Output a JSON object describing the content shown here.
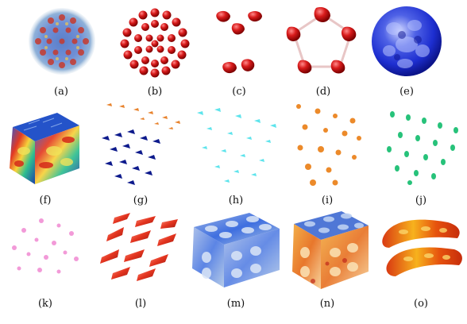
{
  "panels": [
    {
      "label": "(a)"
    },
    {
      "label": "(b)"
    },
    {
      "label": "(c)"
    },
    {
      "label": "(d)"
    },
    {
      "label": "(e)"
    },
    {
      "label": "(f)"
    },
    {
      "label": "(g)"
    },
    {
      "label": "(h)"
    },
    {
      "label": "(i)"
    },
    {
      "label": "(j)"
    },
    {
      "label": "(k)"
    },
    {
      "label": "(l)"
    },
    {
      "label": "(m)"
    },
    {
      "label": "(n)"
    },
    {
      "label": "(o)"
    }
  ]
}
